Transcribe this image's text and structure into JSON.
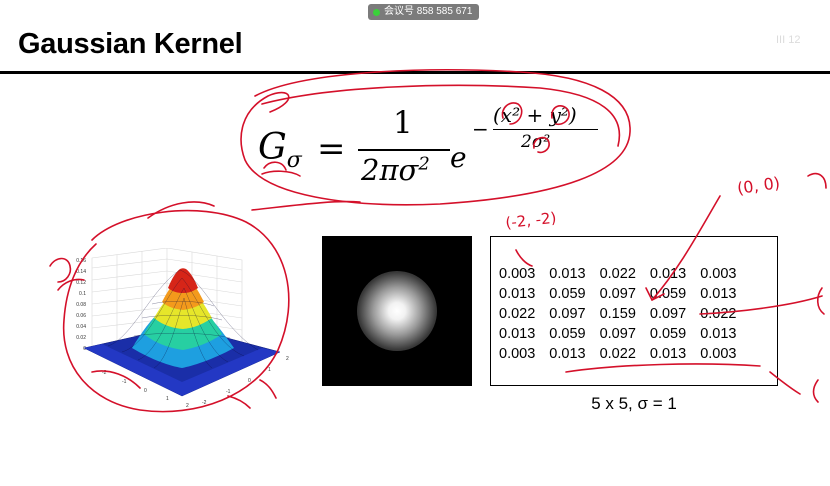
{
  "meeting_badge": "会议号 858 585 671",
  "slide": {
    "title": "Gaussian Kernel",
    "formula": {
      "lhs": "G",
      "lhs_sub": "σ",
      "equals": "=",
      "numerator": "1",
      "denominator": "2πσ",
      "denominator_sup": "2",
      "base": "e",
      "exp_sign": "−",
      "exp_numerator": "(x² + y²)",
      "exp_denominator": "2σ²"
    },
    "kernel_matrix": [
      [
        "0.003",
        "0.013",
        "0.022",
        "0.013",
        "0.003"
      ],
      [
        "0.013",
        "0.059",
        "0.097",
        "0.059",
        "0.013"
      ],
      [
        "0.022",
        "0.097",
        "0.159",
        "0.097",
        "0.022"
      ],
      [
        "0.013",
        "0.059",
        "0.097",
        "0.059",
        "0.013"
      ],
      [
        "0.003",
        "0.013",
        "0.022",
        "0.013",
        "0.003"
      ]
    ],
    "caption": "5 x 5, σ = 1",
    "plot_axes": {
      "z_ticks": [
        "0.16",
        "0.14",
        "0.12",
        "0.1",
        "0.08",
        "0.06",
        "0.04",
        "0.02",
        "0"
      ],
      "x_ticks": [
        "-2",
        "-1",
        "0",
        "1",
        "2"
      ],
      "y_ticks": [
        "-2",
        "-1",
        "0",
        "1",
        "2"
      ]
    }
  },
  "annotations": {
    "ink_color": "#d4102a",
    "label_top_right": "(0, 0)",
    "label_matrix": "(-2, -2)"
  },
  "faint_text": "III 12"
}
